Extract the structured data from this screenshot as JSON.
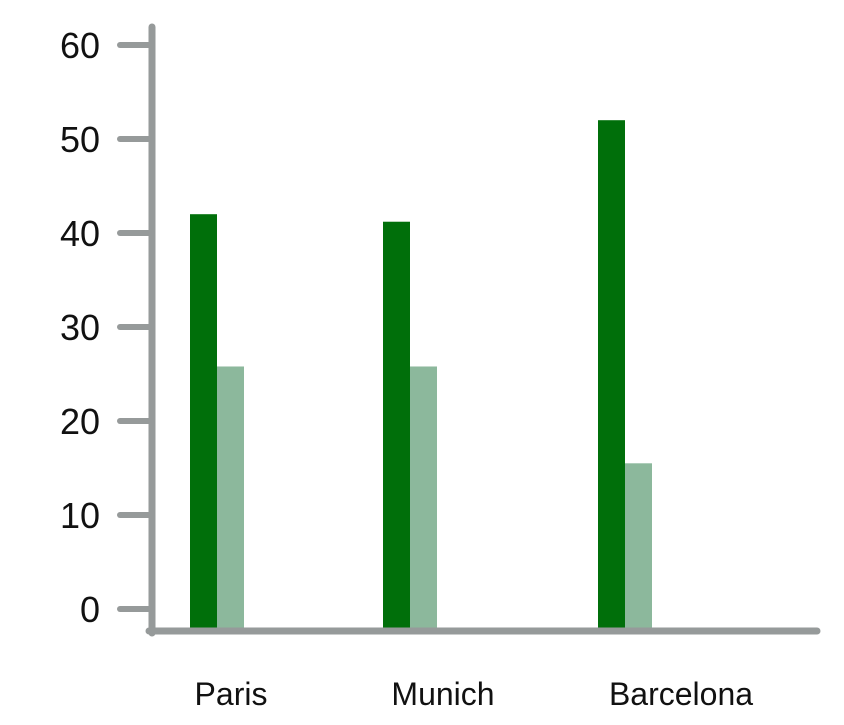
{
  "chart_data": {
    "type": "bar",
    "categories": [
      "Paris",
      "Munich",
      "Barcelona"
    ],
    "series": [
      {
        "color": "#006f0a",
        "values": [
          42,
          41.2,
          52
        ]
      },
      {
        "color": "#8cb89c",
        "values": [
          25.8,
          25.8,
          15.5
        ]
      }
    ],
    "ylim": [
      0,
      60
    ],
    "yticks": [
      "0",
      "10",
      "20",
      "30",
      "40",
      "50",
      "60"
    ],
    "grid": false,
    "axis_color": "#969a9a"
  }
}
